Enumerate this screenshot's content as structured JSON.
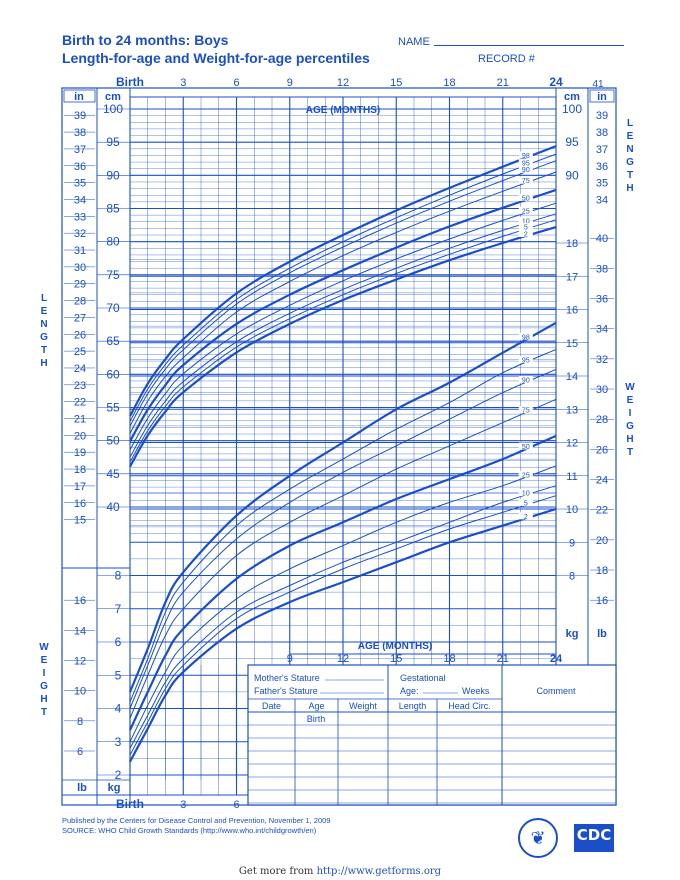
{
  "header": {
    "title_line1": "Birth to 24 months: Boys",
    "title_line2": "Length-for-age and Weight-for-age percentiles",
    "name_label": "NAME",
    "record_label": "RECORD #"
  },
  "axis_labels": {
    "birth": "Birth",
    "age_months": "AGE (MONTHS)",
    "in": "in",
    "cm": "cm",
    "kg": "kg",
    "lb": "lb",
    "length_vertical": "LENGTH",
    "weight_vertical": "WEIGHT"
  },
  "form": {
    "mothers_stature": "Mother's Stature",
    "fathers_stature": "Father's Stature",
    "gestational": "Gestational",
    "age": "Age:",
    "weeks": "Weeks",
    "comment": "Comment",
    "cols": [
      "Date",
      "Age",
      "Weight",
      "Length",
      "Head  Circ."
    ],
    "first_row_age": "Birth"
  },
  "footer": {
    "line1": "Published by the Centers for Disease Control and Prevention, November 1, 2009",
    "line2": "SOURCE:  WHO Child Growth Standards (http://www.who.int/childgrowth/en)",
    "get_more_prefix": "Get more from ",
    "get_more_url": "http://www.getforms.org",
    "cdc_logo": "CDC"
  },
  "colors": {
    "ink": "#1a4fc7"
  },
  "chart_data": [
    {
      "type": "line",
      "title": "Length-for-age percentiles",
      "xlabel": "AGE (MONTHS)",
      "ylabel": "cm",
      "x_ticks": [
        "Birth",
        "3",
        "6",
        "9",
        "12",
        "15",
        "18",
        "21",
        "24"
      ],
      "x": [
        0,
        1,
        2,
        3,
        6,
        9,
        12,
        15,
        18,
        21,
        24
      ],
      "ylim": [
        14.5,
        100
      ],
      "cm_ticks": [
        40,
        45,
        50,
        55,
        60,
        65,
        70,
        75,
        80,
        85,
        90,
        95,
        100
      ],
      "in_ticks_left": [
        15,
        16,
        17,
        18,
        19,
        20,
        21,
        22,
        23,
        24,
        25,
        26,
        27,
        28,
        29,
        30,
        31,
        32,
        33,
        34,
        35,
        36,
        37,
        38,
        39
      ],
      "in_ticks_right": [
        34,
        35,
        36,
        37,
        38,
        39,
        41
      ],
      "series": [
        {
          "name": "98",
          "values": [
            53.7,
            58.6,
            62.3,
            65.3,
            72.2,
            77.0,
            81.0,
            84.7,
            88.1,
            91.3,
            94.4
          ]
        },
        {
          "name": "95",
          "values": [
            52.9,
            57.8,
            61.5,
            64.4,
            71.3,
            76.0,
            80.0,
            83.6,
            87.0,
            90.2,
            93.2
          ]
        },
        {
          "name": "90",
          "values": [
            52.2,
            57.1,
            60.8,
            63.7,
            70.6,
            75.3,
            79.2,
            82.8,
            86.1,
            89.2,
            92.2
          ]
        },
        {
          "name": "75",
          "values": [
            51.1,
            56.0,
            59.7,
            62.5,
            69.4,
            74.0,
            77.9,
            81.4,
            84.6,
            87.6,
            90.5
          ]
        },
        {
          "name": "50",
          "values": [
            49.9,
            54.7,
            58.4,
            61.4,
            67.6,
            72.0,
            75.7,
            79.1,
            82.3,
            85.1,
            87.8
          ]
        },
        {
          "name": "25",
          "values": [
            48.6,
            53.4,
            57.1,
            60.1,
            66.1,
            70.4,
            74.1,
            77.4,
            80.4,
            83.2,
            85.8
          ]
        },
        {
          "name": "10",
          "values": [
            47.5,
            52.3,
            56.0,
            58.9,
            64.9,
            69.2,
            72.8,
            76.0,
            79.0,
            81.7,
            84.2
          ]
        },
        {
          "name": "5",
          "values": [
            46.8,
            51.5,
            55.2,
            58.1,
            64.1,
            68.4,
            72.0,
            75.2,
            78.1,
            80.8,
            83.3
          ]
        },
        {
          "name": "2",
          "values": [
            46.1,
            50.8,
            54.4,
            57.3,
            63.3,
            67.6,
            71.2,
            74.3,
            77.2,
            79.8,
            82.2
          ]
        }
      ],
      "grid": true
    },
    {
      "type": "line",
      "title": "Weight-for-age percentiles",
      "xlabel": "AGE (MONTHS)",
      "ylabel": "kg",
      "x_ticks": [
        "Birth",
        "3",
        "6",
        "9",
        "12",
        "15",
        "18",
        "21",
        "24"
      ],
      "x": [
        0,
        1,
        2,
        3,
        6,
        9,
        12,
        15,
        18,
        21,
        24
      ],
      "ylim": [
        1.4,
        18.7
      ],
      "kg_ticks": [
        2,
        3,
        4,
        5,
        6,
        7,
        8,
        9,
        10,
        11,
        12,
        13,
        14,
        15,
        16,
        17,
        18
      ],
      "lb_ticks": [
        6,
        8,
        10,
        12,
        14,
        16,
        18,
        20,
        22,
        24,
        26,
        28,
        30,
        32,
        34,
        36,
        38,
        40
      ],
      "series": [
        {
          "name": "98",
          "values": [
            4.5,
            5.8,
            7.2,
            8.1,
            9.8,
            11.0,
            12.0,
            13.0,
            13.8,
            14.7,
            15.6
          ]
        },
        {
          "name": "95",
          "values": [
            4.2,
            5.5,
            6.9,
            7.8,
            9.5,
            10.6,
            11.5,
            12.4,
            13.2,
            14.1,
            14.8
          ]
        },
        {
          "name": "90",
          "values": [
            4.0,
            5.3,
            6.6,
            7.5,
            9.1,
            10.2,
            11.1,
            11.9,
            12.7,
            13.5,
            14.2
          ]
        },
        {
          "name": "75",
          "values": [
            3.7,
            5.0,
            6.2,
            7.0,
            8.6,
            9.6,
            10.4,
            11.2,
            11.9,
            12.6,
            13.3
          ]
        },
        {
          "name": "50",
          "values": [
            3.35,
            4.5,
            5.6,
            6.4,
            7.9,
            8.9,
            9.6,
            10.3,
            10.9,
            11.5,
            12.2
          ]
        },
        {
          "name": "25",
          "values": [
            3.0,
            4.1,
            5.1,
            5.9,
            7.3,
            8.2,
            8.9,
            9.6,
            10.2,
            10.7,
            11.3
          ]
        },
        {
          "name": "10",
          "values": [
            2.8,
            3.8,
            4.8,
            5.5,
            6.9,
            7.7,
            8.4,
            9.0,
            9.6,
            10.2,
            10.7
          ]
        },
        {
          "name": "5",
          "values": [
            2.6,
            3.6,
            4.6,
            5.3,
            6.7,
            7.5,
            8.2,
            8.8,
            9.4,
            9.9,
            10.4
          ]
        },
        {
          "name": "2",
          "values": [
            2.4,
            3.4,
            4.4,
            5.1,
            6.4,
            7.2,
            7.8,
            8.4,
            9.0,
            9.5,
            10.0
          ]
        }
      ],
      "grid": true
    }
  ]
}
